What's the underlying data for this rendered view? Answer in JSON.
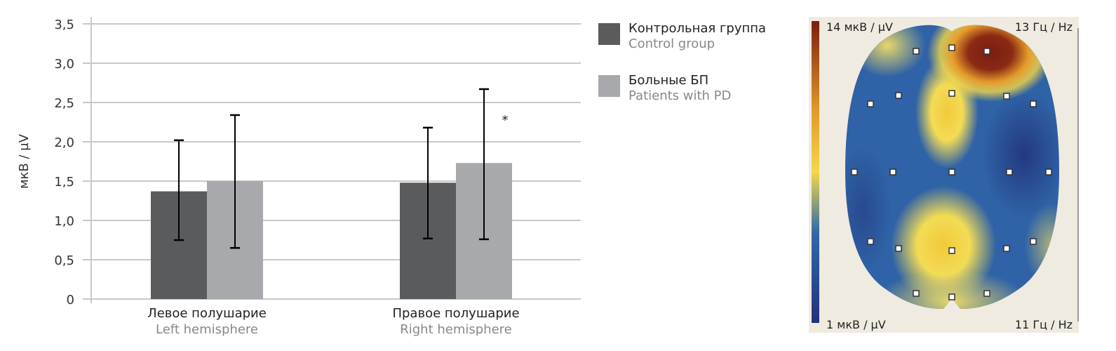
{
  "chart_data": {
    "type": "bar",
    "ylabel": "мкВ / µV",
    "ylim": [
      0,
      3.5
    ],
    "yticks": [
      "0",
      "0,5",
      "1,0",
      "1,5",
      "2,0",
      "2,5",
      "3,0",
      "3,5"
    ],
    "ytick_values": [
      0,
      0.5,
      1.0,
      1.5,
      2.0,
      2.5,
      3.0,
      3.5
    ],
    "grid": true,
    "categories": [
      {
        "ru": "Левое полушарие",
        "en": "Left hemisphere"
      },
      {
        "ru": "Правое полушарие",
        "en": "Right hemisphere"
      }
    ],
    "series": [
      {
        "name_ru": "Контрольная группа",
        "name_en": "Control group",
        "color": "#5a5b5d",
        "values": [
          1.37,
          1.48
        ],
        "err_high": [
          2.02,
          2.18
        ],
        "err_low": [
          0.75,
          0.77
        ]
      },
      {
        "name_ru": "Больные БП",
        "name_en": "Patients with PD",
        "color": "#a8a9ac",
        "values": [
          1.5,
          1.73
        ],
        "err_high": [
          2.34,
          2.67
        ],
        "err_low": [
          0.65,
          0.76
        ]
      }
    ],
    "annotations": [
      {
        "text": "*",
        "category": 1,
        "series": 1
      }
    ],
    "legend_position": "right"
  },
  "topomap": {
    "max_label": "14 мкВ / µV",
    "min_label": "1 мкВ / µV",
    "freq_high": "13 Гц / Hz",
    "freq_low": "11 Гц / Hz",
    "colors": {
      "low": "#23307a",
      "mid_low": "#2f6aa8",
      "mid": "#f3d84a",
      "high": "#7a1e12"
    }
  }
}
